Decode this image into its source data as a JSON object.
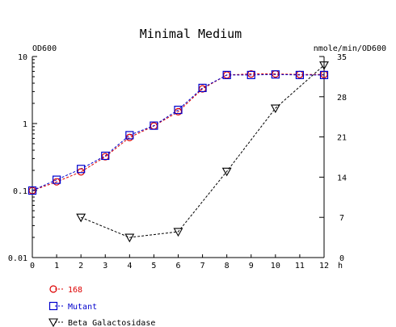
{
  "chart_data": {
    "type": "line",
    "title": "Minimal Medium",
    "y_left_label": "OD600",
    "y_right_label": "nmole/min/OD600",
    "x_unit_label": "h",
    "x_ticks": [
      0,
      1,
      2,
      3,
      4,
      5,
      6,
      7,
      8,
      9,
      10,
      11,
      12
    ],
    "xlim": [
      0,
      12
    ],
    "y_left_scale": "log",
    "y_left_ticks": [
      "10",
      "1",
      "0.1",
      "0.01"
    ],
    "y_left_lim": [
      0.01,
      10
    ],
    "y_right_ticks": [
      "35",
      "28",
      "21",
      "14",
      "7",
      "0"
    ],
    "y_right_lim": [
      0,
      35
    ],
    "grid": false,
    "legend_position": "bottom-left",
    "series": [
      {
        "name": "168",
        "axis": "left",
        "color": "#dd0000",
        "marker": "circle",
        "x": [
          0,
          1,
          2,
          3,
          4,
          5,
          6,
          7,
          8,
          9,
          10,
          11,
          12
        ],
        "y": [
          0.1,
          0.135,
          0.19,
          0.32,
          0.62,
          0.92,
          1.5,
          3.3,
          5.3,
          5.5,
          5.5,
          5.4,
          5.4
        ]
      },
      {
        "name": "Mutant",
        "axis": "left",
        "color": "#0000cc",
        "marker": "square",
        "x": [
          0,
          1,
          2,
          3,
          4,
          5,
          6,
          7,
          8,
          9,
          10,
          11,
          12
        ],
        "y": [
          0.1,
          0.145,
          0.21,
          0.33,
          0.67,
          0.93,
          1.6,
          3.4,
          5.3,
          5.3,
          5.4,
          5.3,
          5.3
        ]
      },
      {
        "name": "Beta Galactosidase",
        "axis": "right",
        "color": "#000000",
        "marker": "triangle-down",
        "x": [
          2,
          4,
          6,
          8,
          10,
          12
        ],
        "y": [
          7,
          3.5,
          4.5,
          15,
          26,
          33.5
        ]
      }
    ]
  }
}
